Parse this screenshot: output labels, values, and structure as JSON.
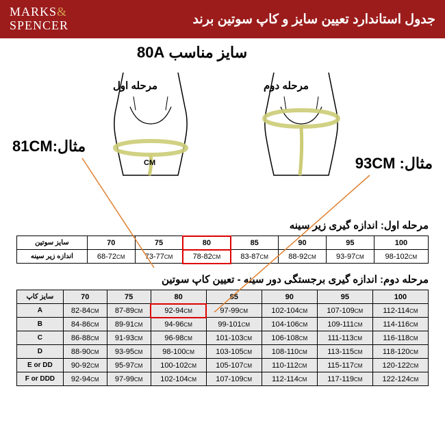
{
  "header": {
    "logo_line1": "MARKS",
    "logo_amp": "&",
    "logo_line2": "SPENCER",
    "title": "جدول استاندارد تعیین سایز و کاپ سوتین برند"
  },
  "diagram": {
    "size_label": "سایز مناسب 80A",
    "step1_label": "مرحله اول",
    "step2_label": "مرحله دوم",
    "example1": "مثال:81CM",
    "example2": "مثال: 93CM",
    "cm": "CM"
  },
  "table1": {
    "title": "مرحله اول: اندازه گیری زیر سینه",
    "header_label": "سایز سوتین",
    "row_label": "اندازه زیر سینه",
    "sizes": [
      "70",
      "75",
      "80",
      "85",
      "90",
      "95",
      "100"
    ],
    "values": [
      "68-72",
      "73-77",
      "78-82",
      "83-87",
      "88-92",
      "93-97",
      "98-102"
    ],
    "highlight_col": 2
  },
  "table2": {
    "title": "مرحله دوم: اندازه گیری برجستگی دور سینه - تعیین کاپ سوتین",
    "header_label": "سایز کاپ",
    "sizes": [
      "70",
      "75",
      "80",
      "85",
      "90",
      "95",
      "100"
    ],
    "cups": [
      "A",
      "B",
      "C",
      "D",
      "E or DD",
      "F or DDD"
    ],
    "rows": [
      [
        "82-84",
        "87-89",
        "92-94",
        "97-99",
        "102-104",
        "107-109",
        "112-114"
      ],
      [
        "84-86",
        "89-91",
        "94-96",
        "99-101",
        "104-106",
        "109-111",
        "114-116"
      ],
      [
        "86-88",
        "91-93",
        "96-98",
        "101-103",
        "106-108",
        "111-113",
        "116-118"
      ],
      [
        "88-90",
        "93-95",
        "98-100",
        "103-105",
        "108-110",
        "113-115",
        "118-120"
      ],
      [
        "90-92",
        "95-97",
        "100-102",
        "105-107",
        "110-112",
        "115-117",
        "120-122"
      ],
      [
        "92-94",
        "97-99",
        "102-104",
        "107-109",
        "112-114",
        "117-119",
        "122-124"
      ]
    ],
    "highlight": {
      "row": 0,
      "col": 2
    }
  },
  "colors": {
    "header_bg": "#9c1c1c",
    "accent": "#d4a04f",
    "highlight": "#d00",
    "table2_bg": "#e8e8e8",
    "line": "#e08030"
  }
}
